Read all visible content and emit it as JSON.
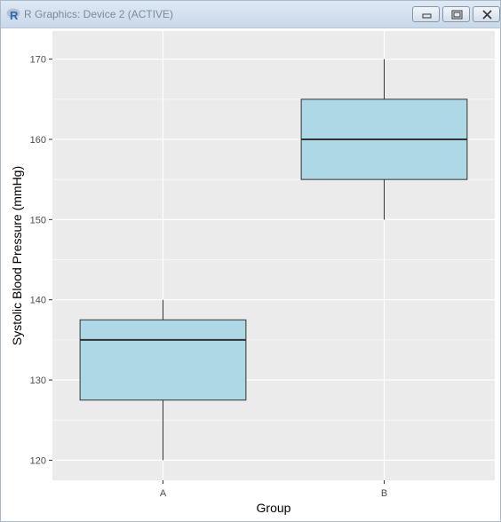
{
  "window": {
    "title": "R Graphics: Device 2 (ACTIVE)",
    "controls": [
      "minimize",
      "maximize",
      "close"
    ]
  },
  "chart_data": {
    "type": "box",
    "xlabel": "Group",
    "ylabel": "Systolic Blood Pressure (mmHg)",
    "categories": [
      "A",
      "B"
    ],
    "boxes": [
      {
        "group": "A",
        "min": 120,
        "q1": 127.5,
        "median": 135,
        "q3": 137.5,
        "max": 140
      },
      {
        "group": "B",
        "min": 150,
        "q1": 155,
        "median": 160,
        "q3": 165,
        "max": 170
      }
    ],
    "ylim": [
      117.5,
      173.5
    ],
    "yticks": [
      120,
      130,
      140,
      150,
      160,
      170
    ],
    "grid": true,
    "colors": {
      "panel": "#ebebeb",
      "grid": "#ffffff",
      "box_fill": "#add8e6",
      "box_stroke": "#333333"
    }
  }
}
